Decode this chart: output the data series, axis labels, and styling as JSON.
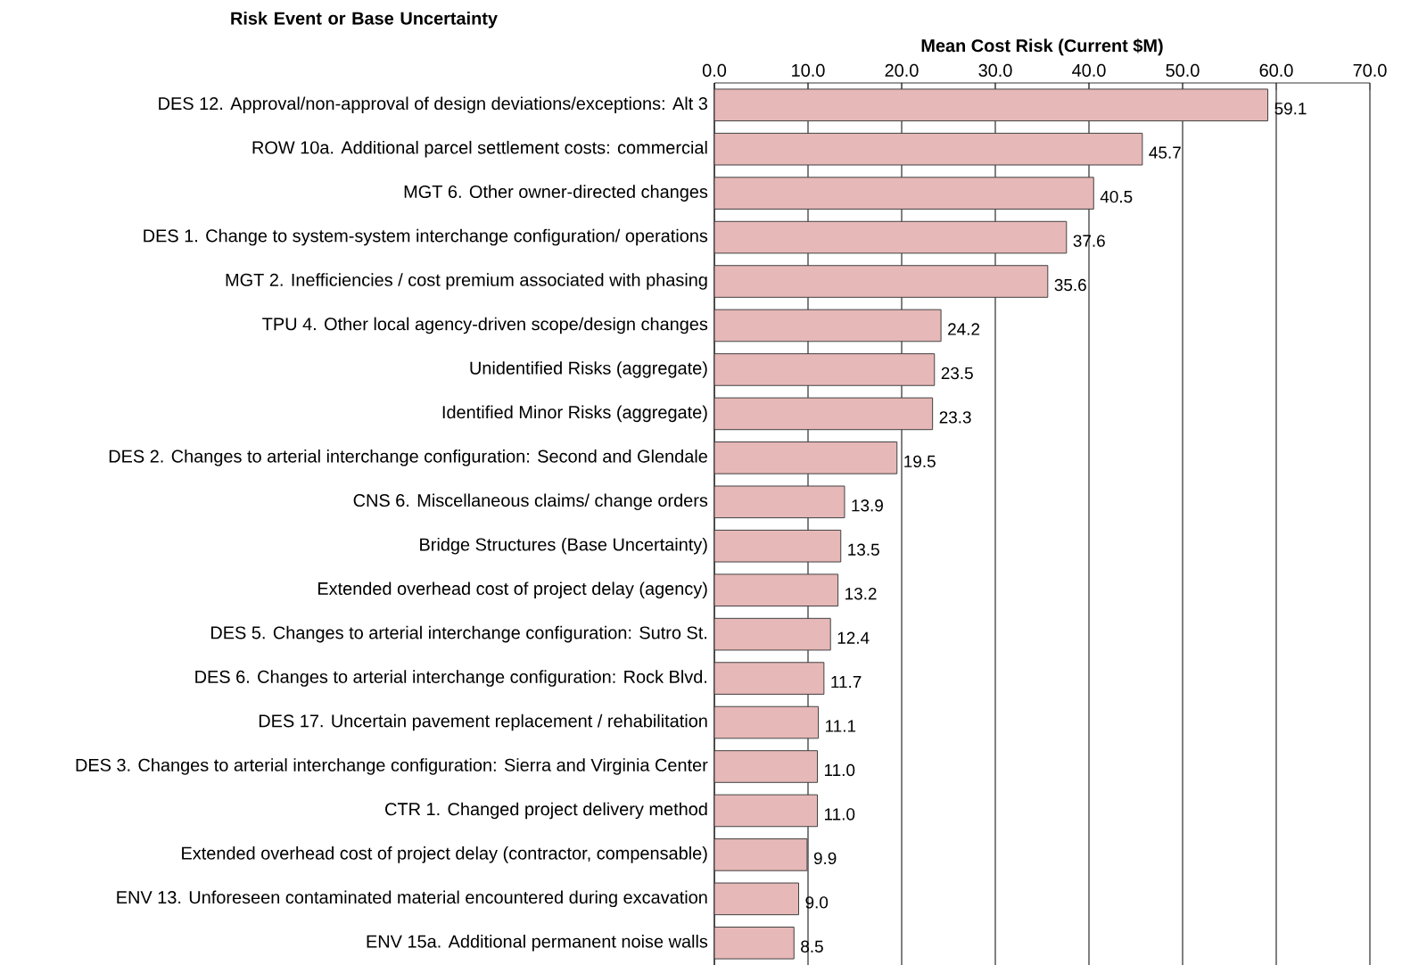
{
  "chart_data": {
    "type": "bar",
    "orientation": "horizontal",
    "xlabel": "Mean Cost Risk (Current $M)",
    "ylabel": "Risk Event or Base Uncertainty",
    "color": "#e6b8b7",
    "grid": "x",
    "categories": [
      "DES 12. Approval/non-approval of design deviations/exceptions: Alt 3",
      "ROW 10a. Additional parcel settlement costs: commercial",
      "MGT 6. Other owner-directed changes",
      "DES 1. Change to system-system interchange configuration/ operations",
      "MGT 2. Inefficiencies / cost premium associated with phasing",
      "TPU 4. Other local agency-driven scope/design changes",
      "Unidentified Risks (aggregate)",
      "Identified Minor Risks (aggregate)",
      "DES 2. Changes to arterial interchange configuration: Second and Glendale",
      "CNS 6. Miscellaneous claims/ change orders",
      "Bridge Structures (Base Uncertainty)",
      "Extended overhead cost of project delay (agency)",
      "DES 5. Changes to arterial interchange configuration: Sutro St.",
      "DES 6. Changes to arterial interchange configuration: Rock Blvd.",
      "DES 17. Uncertain pavement replacement / rehabilitation",
      "DES 3. Changes to arterial interchange configuration: Sierra and Virginia Center",
      "CTR 1. Changed project delivery method",
      "Extended overhead cost of project delay (contractor, compensable)",
      "ENV 13. Unforeseen contaminated material encountered during excavation",
      "ENV 15a. Additional permanent noise walls"
    ],
    "values": [
      59.1,
      45.7,
      40.5,
      37.6,
      35.6,
      24.2,
      23.5,
      23.3,
      19.5,
      13.9,
      13.5,
      13.2,
      12.4,
      11.7,
      11.1,
      11.0,
      11.0,
      9.9,
      9.0,
      8.5
    ],
    "value_labels": [
      "59.1",
      "45.7",
      "40.5",
      "37.6",
      "35.6",
      "24.2",
      "23.5",
      "23.3",
      "19.5",
      "13.9",
      "13.5",
      "13.2",
      "12.4",
      "11.7",
      "11.1",
      "11.0",
      "11.0",
      "9.9",
      "9.0",
      "8.5"
    ],
    "xlim": [
      0,
      70
    ],
    "xticks": [
      {
        "value": 0,
        "label": "0.0"
      },
      {
        "value": 10,
        "label": "10.0"
      },
      {
        "value": 20,
        "label": "20.0"
      },
      {
        "value": 30,
        "label": "30.0"
      },
      {
        "value": 40,
        "label": "40.0"
      },
      {
        "value": 50,
        "label": "50.0"
      },
      {
        "value": 60,
        "label": "60.0"
      },
      {
        "value": 70,
        "label": "70.0"
      }
    ]
  }
}
